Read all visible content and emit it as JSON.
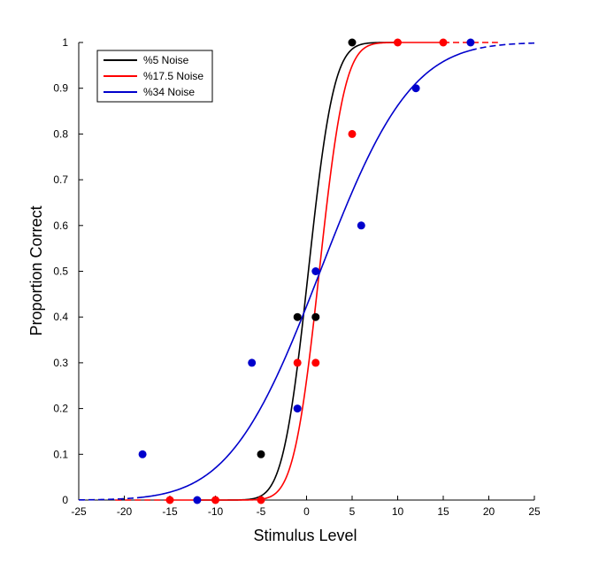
{
  "chart_data": {
    "type": "line",
    "title": "",
    "xlabel": "Stimulus Level",
    "ylabel": "Proportion Correct",
    "xlim": [
      -25,
      25
    ],
    "ylim": [
      0,
      1
    ],
    "x_ticks": [
      -25,
      -20,
      -15,
      -10,
      -5,
      0,
      5,
      10,
      15,
      20,
      25
    ],
    "y_ticks": [
      0,
      0.1,
      0.2,
      0.3,
      0.4,
      0.5,
      0.6,
      0.7,
      0.8,
      0.9,
      1
    ],
    "x_tick_labels": [
      "-25",
      "-20",
      "-15",
      "-10",
      "-5",
      "0",
      "5",
      "10",
      "15",
      "20",
      "25"
    ],
    "y_tick_labels": [
      "0",
      "0.1",
      "0.2",
      "0.3",
      "0.4",
      "0.5",
      "0.6",
      "0.7",
      "0.8",
      "0.9",
      "1"
    ],
    "grid": false,
    "legend_position": "top-left",
    "series": [
      {
        "name": "%5 Noise",
        "color": "#000000",
        "fit": {
          "mean": 0.2,
          "sd": 2.2
        },
        "solid_range": [
          -12,
          10
        ],
        "dashed_range": [
          -12,
          10
        ],
        "points": [
          [
            -5,
            0.1
          ],
          [
            -1,
            0.4
          ],
          [
            1,
            0.4
          ],
          [
            5,
            1.0
          ]
        ]
      },
      {
        "name": "%17.5 Noise",
        "color": "#ff0000",
        "fit": {
          "mean": 1.4,
          "sd": 2.2
        },
        "solid_range": [
          -15,
          15
        ],
        "dashed_range": [
          -21,
          21
        ],
        "points": [
          [
            -15,
            0.0
          ],
          [
            -10,
            0.0
          ],
          [
            -5,
            0.0
          ],
          [
            -1,
            0.3
          ],
          [
            1,
            0.3
          ],
          [
            5,
            0.8
          ],
          [
            10,
            1.0
          ],
          [
            15,
            1.0
          ]
        ]
      },
      {
        "name": "%34 Noise",
        "color": "#0000cc",
        "fit": {
          "mean": 1.5,
          "sd": 7.8
        },
        "solid_range": [
          -18,
          18
        ],
        "dashed_range": [
          -25,
          25
        ],
        "points": [
          [
            -18,
            0.1
          ],
          [
            -12,
            0.0
          ],
          [
            -6,
            0.3
          ],
          [
            -1,
            0.2
          ],
          [
            1,
            0.5
          ],
          [
            6,
            0.6
          ],
          [
            12,
            0.9
          ],
          [
            18,
            1.0
          ]
        ]
      }
    ]
  }
}
